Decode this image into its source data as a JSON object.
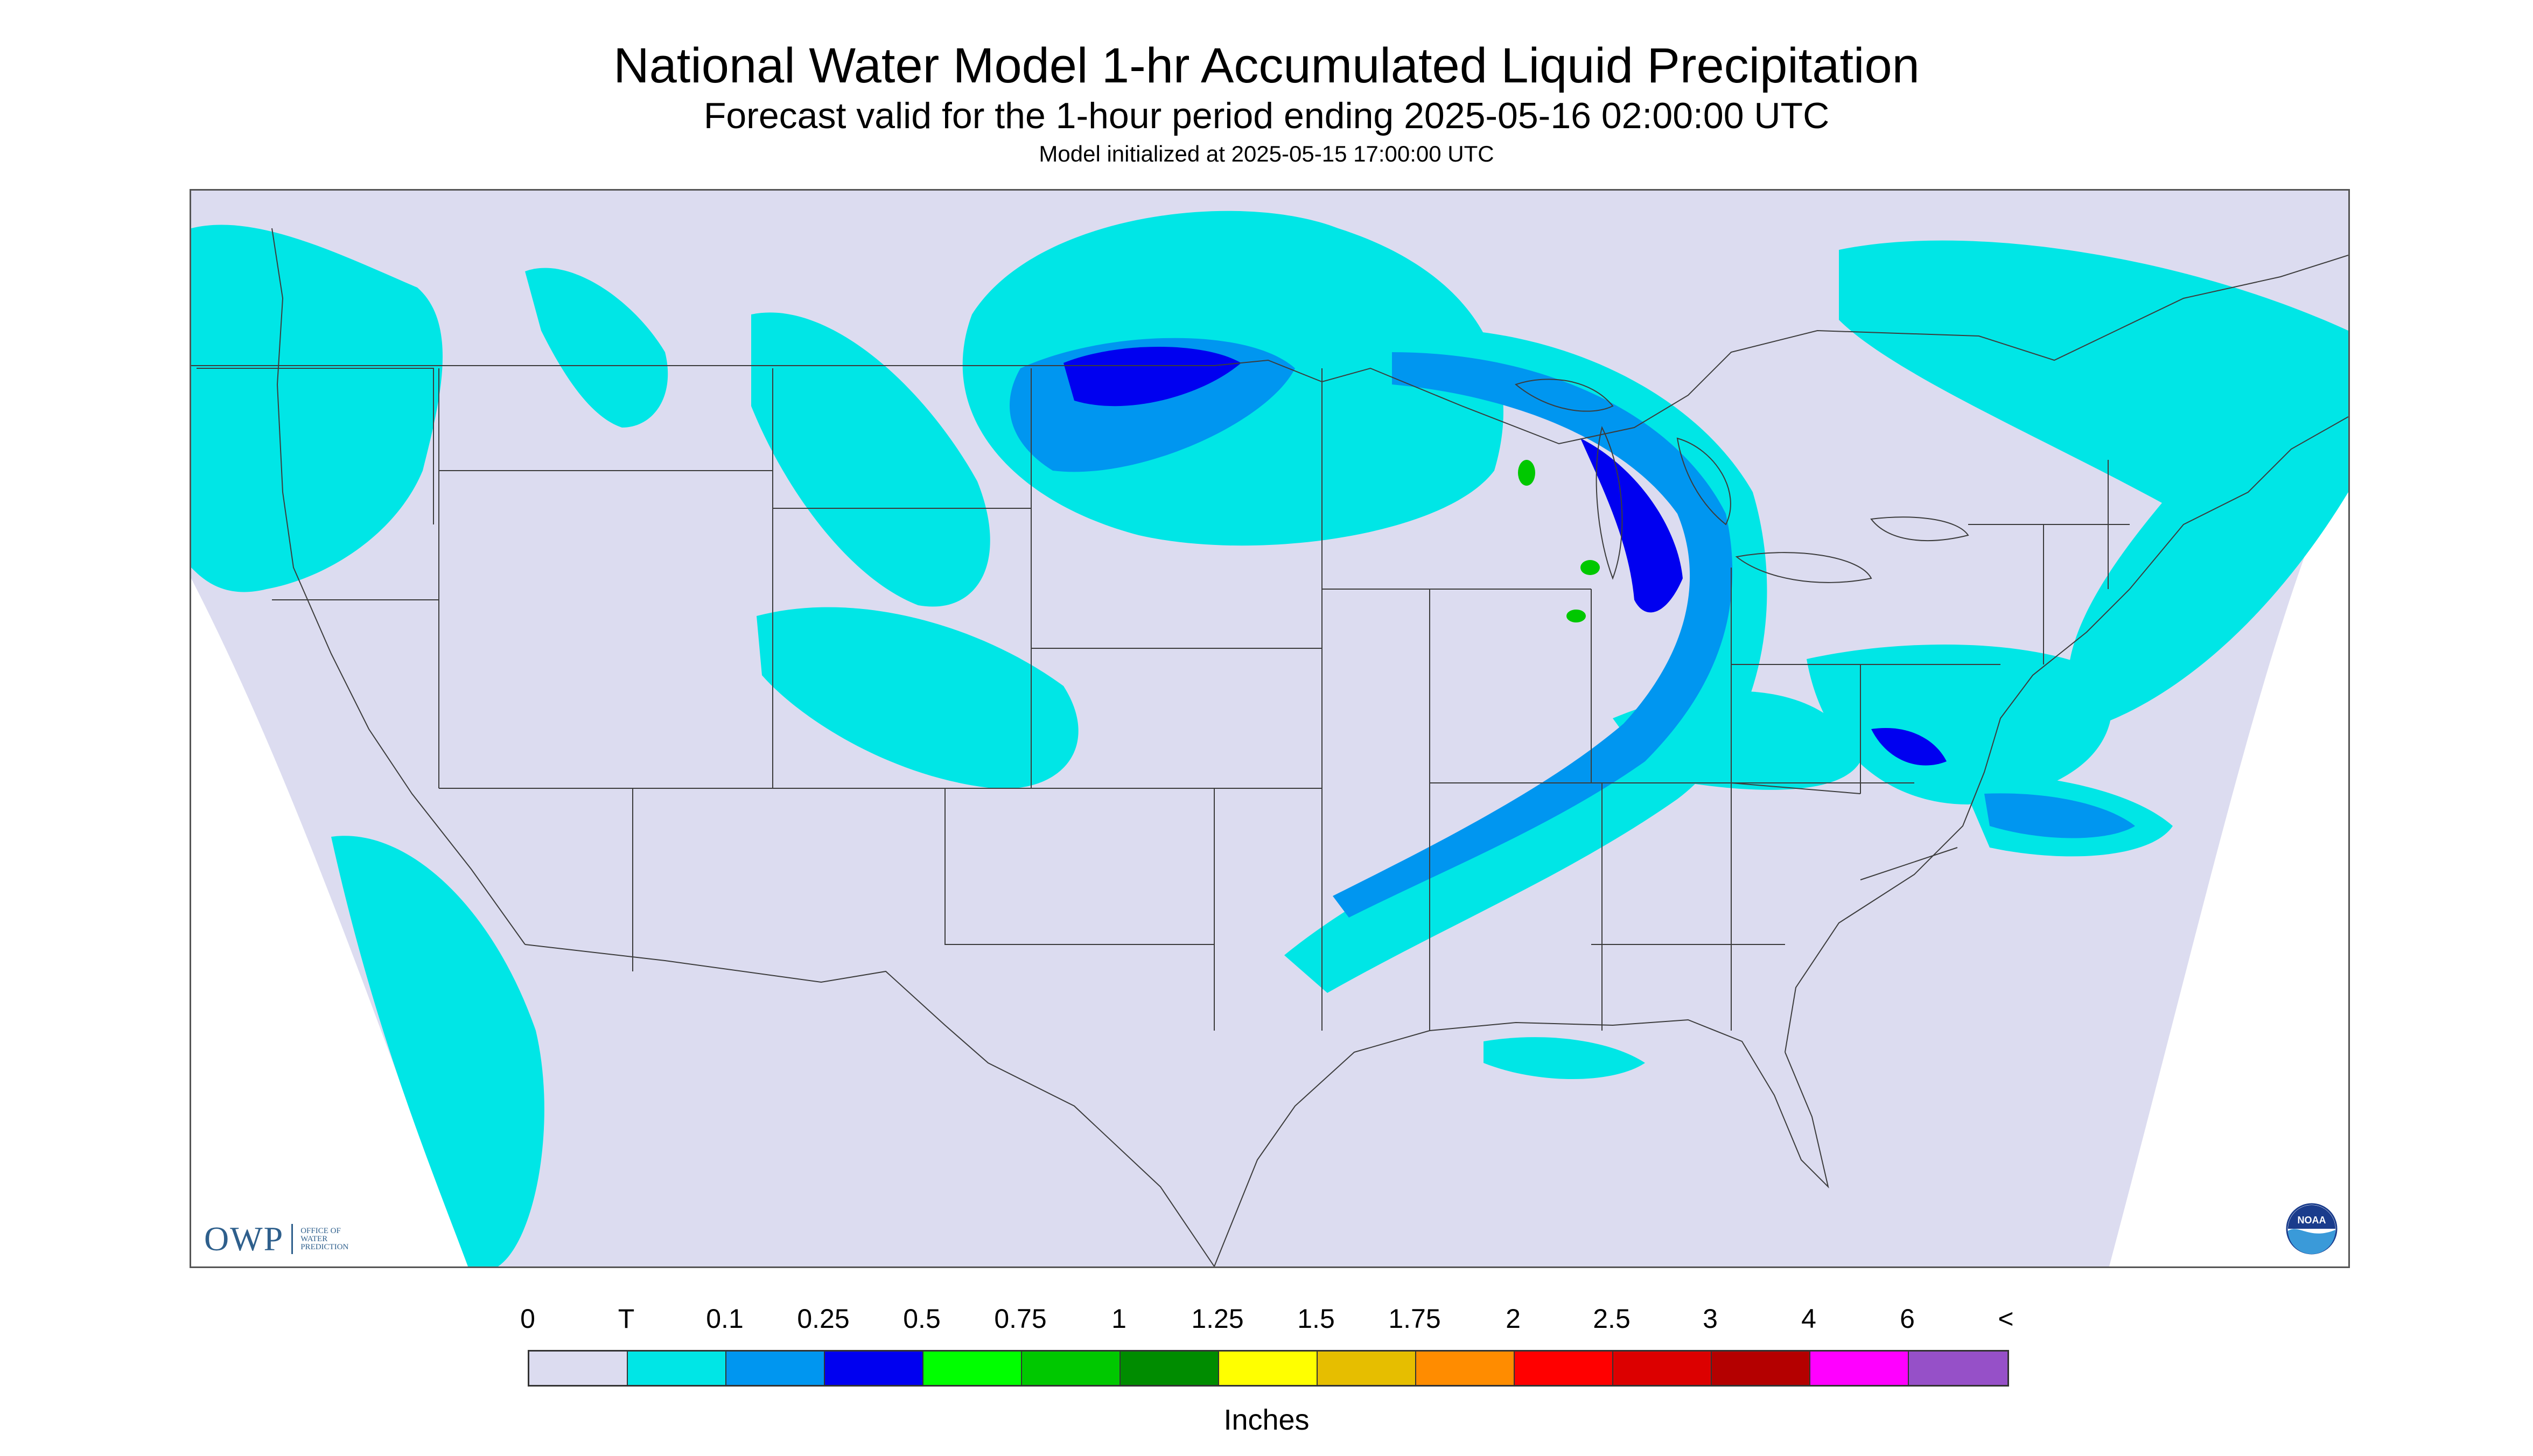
{
  "header": {
    "title": "National Water Model 1-hr Accumulated Liquid Precipitation",
    "subtitle": "Forecast valid for the 1-hour period ending 2025-05-16 02:00:00 UTC",
    "init_line": "Model initialized at 2025-05-15 17:00:00 UTC"
  },
  "logos": {
    "owp_text": "OWP",
    "owp_sub": "OFFICE OF WATER PREDICTION",
    "noaa_text": "NOAA"
  },
  "legend": {
    "labels": [
      "0",
      "T",
      "0.1",
      "0.25",
      "0.5",
      "0.75",
      "1",
      "1.25",
      "1.5",
      "1.75",
      "2",
      "2.5",
      "3",
      "4",
      "6",
      "<"
    ],
    "colors": [
      "#dcdcf0",
      "#00e6e6",
      "#0096f0",
      "#0000f0",
      "#00ff00",
      "#00c800",
      "#008c00",
      "#ffff00",
      "#e6be00",
      "#ff8c00",
      "#ff0000",
      "#dc0000",
      "#b40000",
      "#ff00ff",
      "#9650c8"
    ],
    "unit": "Inches"
  },
  "map": {
    "background_color": "#dcdcf0",
    "trace_color": "#00e6e6",
    "light_color": "#0096f0",
    "moderate_color": "#0000f0",
    "heavy_color": "#00c800",
    "boundary_color": "#3c3c3c"
  }
}
